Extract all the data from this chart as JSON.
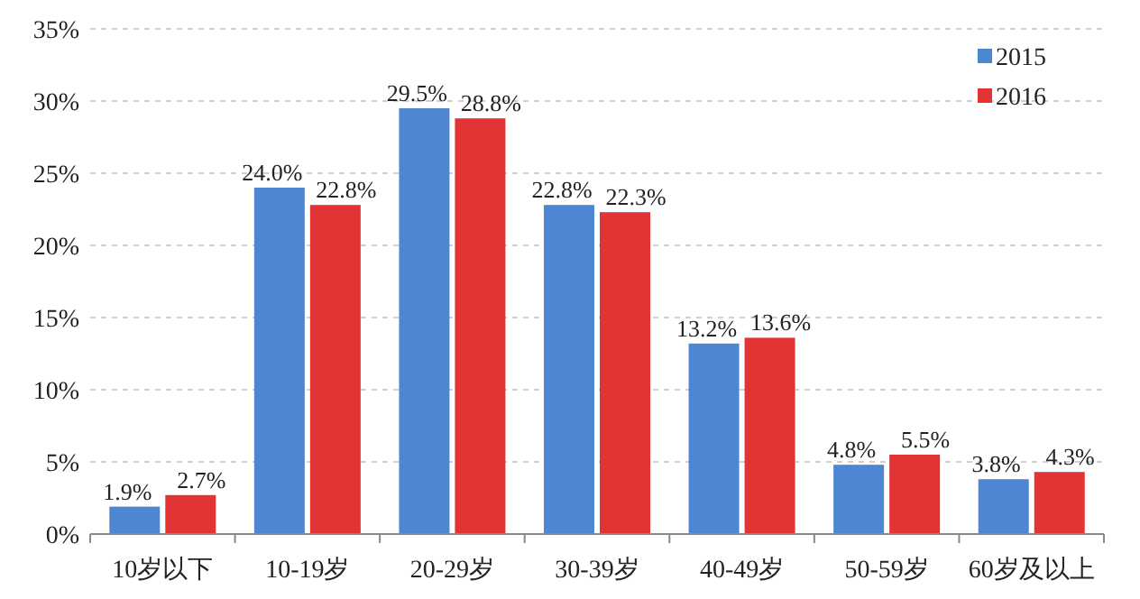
{
  "chart_data": {
    "type": "bar",
    "categories": [
      "10岁以下",
      "10-19岁",
      "20-29岁",
      "30-39岁",
      "40-49岁",
      "50-59岁",
      "60岁及以上"
    ],
    "series": [
      {
        "name": "2015",
        "color": "#4f86d1",
        "values": [
          1.9,
          24.0,
          29.5,
          22.8,
          13.2,
          4.8,
          3.8
        ],
        "value_labels": [
          "1.9%",
          "24.0%",
          "29.5%",
          "22.8%",
          "13.2%",
          "4.8%",
          "3.8%"
        ]
      },
      {
        "name": "2016",
        "color": "#e23434",
        "values": [
          2.7,
          22.8,
          28.8,
          22.3,
          13.6,
          5.5,
          4.3
        ],
        "value_labels": [
          "2.7%",
          "22.8%",
          "28.8%",
          "22.3%",
          "13.6%",
          "5.5%",
          "4.3%"
        ]
      }
    ],
    "ylim": [
      0,
      35
    ],
    "yticks": [
      {
        "value": 0,
        "label": "0%"
      },
      {
        "value": 5,
        "label": "5%"
      },
      {
        "value": 10,
        "label": "10%"
      },
      {
        "value": 15,
        "label": "15%"
      },
      {
        "value": 20,
        "label": "20%"
      },
      {
        "value": 25,
        "label": "25%"
      },
      {
        "value": 30,
        "label": "30%"
      },
      {
        "value": 35,
        "label": "35%"
      }
    ],
    "grid": "y",
    "legend": "top right"
  }
}
